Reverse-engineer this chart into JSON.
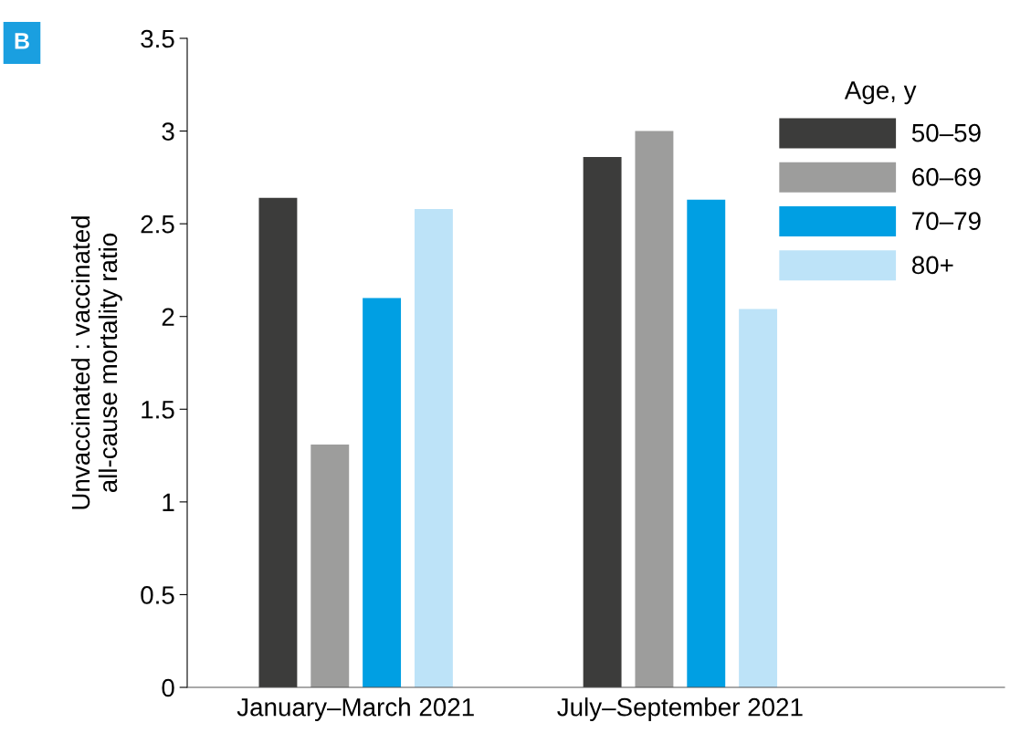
{
  "chart_data": {
    "type": "bar",
    "ylabel": "Unvaccinated : vaccinated\nall-cause mortality ratio",
    "legend_title": "Age, y",
    "annotations": [
      "B"
    ],
    "categories": [
      "January–March 2021",
      "July–September 2021"
    ],
    "series": [
      {
        "name": "50–59",
        "color": "#3c3c3b",
        "values": [
          2.64,
          2.86
        ]
      },
      {
        "name": "60–69",
        "color": "#9d9d9c",
        "values": [
          1.31,
          3.0
        ]
      },
      {
        "name": "70–79",
        "color": "#009fe3",
        "values": [
          2.1,
          2.63
        ]
      },
      {
        "name": "80+",
        "color": "#bde3f8",
        "values": [
          2.58,
          2.04
        ]
      }
    ],
    "ylim": [
      0,
      3.5
    ],
    "yticks": [
      0,
      0.5,
      1,
      1.5,
      2,
      2.5,
      3,
      3.5
    ],
    "grid": false,
    "legend": "top right"
  }
}
